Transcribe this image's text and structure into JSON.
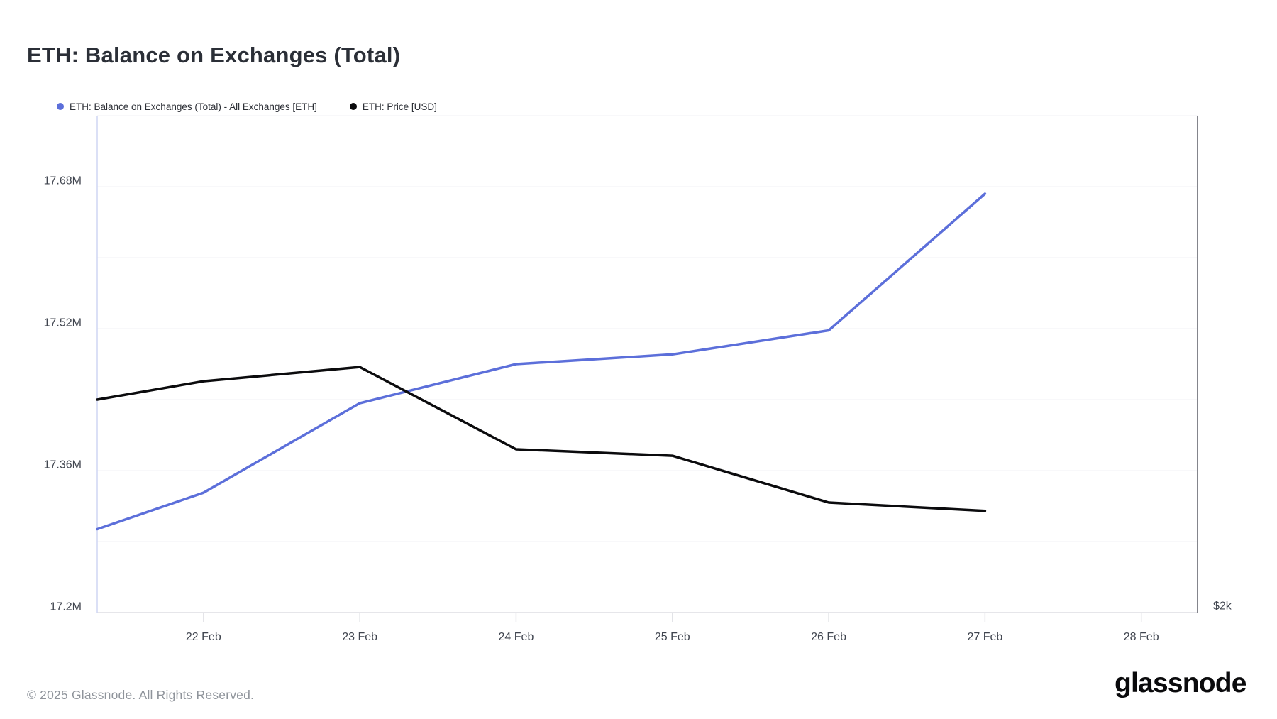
{
  "page": {
    "title": "ETH: Balance on Exchanges (Total)",
    "footer_copyright": "© 2025 Glassnode. All Rights Reserved.",
    "brand_logo_text": "glassnode"
  },
  "chart_data": {
    "type": "line",
    "title": "ETH: Balance on Exchanges (Total)",
    "grid": "horizontal-only",
    "legend_position": "top-left",
    "x_axis": {
      "unit": "date (Feb 2025)",
      "domain_days_feb": [
        21.32,
        28.36
      ],
      "ticks": [
        {
          "day": 22,
          "label": "22 Feb"
        },
        {
          "day": 23,
          "label": "23 Feb"
        },
        {
          "day": 24,
          "label": "24 Feb"
        },
        {
          "day": 25,
          "label": "25 Feb"
        },
        {
          "day": 26,
          "label": "26 Feb"
        },
        {
          "day": 27,
          "label": "27 Feb"
        },
        {
          "day": 28,
          "label": "28 Feb"
        }
      ]
    },
    "y_axis_left": {
      "unit": "ETH (millions)",
      "range": [
        17.2,
        17.76
      ],
      "gridline_step": 0.08,
      "tick_labels": [
        {
          "value": 17.68,
          "label": "17.68M"
        },
        {
          "value": 17.52,
          "label": "17.52M"
        },
        {
          "value": 17.36,
          "label": "17.36M"
        },
        {
          "value": 17.2,
          "label": "17.2M"
        }
      ]
    },
    "y_axis_right": {
      "unit": "USD",
      "range_estimated": [
        2000,
        3540
      ],
      "tick_labels": [
        {
          "value": 2000,
          "label": "$2k"
        }
      ],
      "note": "only the $2k tick label is visible; series values are estimated from line position"
    },
    "series": [
      {
        "name": "ETH: Balance on Exchanges (Total) - All Exchanges [ETH]",
        "color": "#5c6fda",
        "axis": "left",
        "points": [
          {
            "day": 21.32,
            "value": 17.294
          },
          {
            "day": 22,
            "value": 17.335
          },
          {
            "day": 23,
            "value": 17.436
          },
          {
            "day": 24,
            "value": 17.48
          },
          {
            "day": 25,
            "value": 17.491
          },
          {
            "day": 26,
            "value": 17.518
          },
          {
            "day": 27,
            "value": 17.672
          }
        ]
      },
      {
        "name": "ETH: Price [USD]",
        "color": "#0b0b0d",
        "axis": "right",
        "points": [
          {
            "day": 21.32,
            "value": 2660
          },
          {
            "day": 22,
            "value": 2717
          },
          {
            "day": 23,
            "value": 2761
          },
          {
            "day": 24,
            "value": 2506
          },
          {
            "day": 25,
            "value": 2486
          },
          {
            "day": 26,
            "value": 2341
          },
          {
            "day": 27,
            "value": 2315
          }
        ]
      }
    ],
    "styles": {
      "gridline_color": "#f1f1f4",
      "bottom_axis_color": "#dddee3",
      "left_border_color": "#cfd6f3",
      "right_border_color": "#84858c",
      "tick_mark_color": "#e2e3e7",
      "line_width": 3.5
    }
  }
}
